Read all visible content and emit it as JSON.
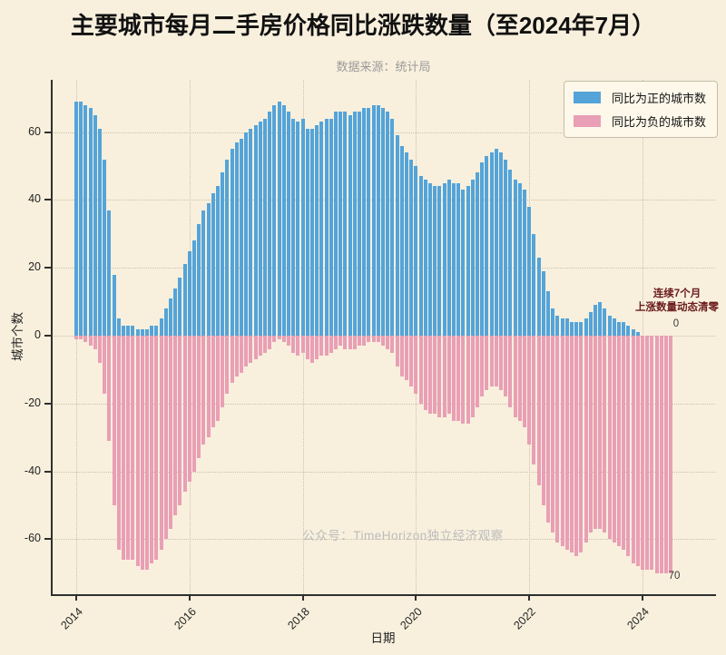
{
  "title": "主要城市每月二手房价格同比涨跌数量（至2024年7月）",
  "subtitle": "数据来源：统计局",
  "watermark": "公众号：TimeHorizon独立经济观察",
  "colors": {
    "positive": "#54a4d9",
    "negative": "#e99fb5",
    "background": "#f8f0dd",
    "grid": "#c9c0ad",
    "spine": "#2f2f2f",
    "annotation": "#6b1b1b"
  },
  "legend": [
    {
      "label": "同比为正的城市数",
      "color": "#54a4d9"
    },
    {
      "label": "同比为负的城市数",
      "color": "#e99fb5"
    }
  ],
  "axes": {
    "ylabel": "城市个数",
    "xlabel": "日期",
    "yticks": [
      60,
      40,
      20,
      0,
      -20,
      -40,
      -60
    ],
    "xticks": [
      "2014",
      "2016",
      "2018",
      "2020",
      "2022",
      "2024"
    ]
  },
  "annotation": {
    "line1": "连续7个月",
    "line2": "上涨数量动态清零",
    "value_top": "0",
    "value_bottom": "70"
  },
  "chart_data": {
    "type": "bar",
    "title": "主要城市每月二手房价格同比涨跌数量（至2024年7月）",
    "xlabel": "日期",
    "ylabel": "城市个数",
    "ylim": [
      -75,
      75
    ],
    "yticks": [
      -60,
      -40,
      -20,
      0,
      20,
      40,
      60
    ],
    "grid": true,
    "legend_position": "upper right",
    "x_start": "2014-01",
    "x_end": "2024-07",
    "categories": [
      "2014-01",
      "2014-02",
      "2014-03",
      "2014-04",
      "2014-05",
      "2014-06",
      "2014-07",
      "2014-08",
      "2014-09",
      "2014-10",
      "2014-11",
      "2014-12",
      "2015-01",
      "2015-02",
      "2015-03",
      "2015-04",
      "2015-05",
      "2015-06",
      "2015-07",
      "2015-08",
      "2015-09",
      "2015-10",
      "2015-11",
      "2015-12",
      "2016-01",
      "2016-02",
      "2016-03",
      "2016-04",
      "2016-05",
      "2016-06",
      "2016-07",
      "2016-08",
      "2016-09",
      "2016-10",
      "2016-11",
      "2016-12",
      "2017-01",
      "2017-02",
      "2017-03",
      "2017-04",
      "2017-05",
      "2017-06",
      "2017-07",
      "2017-08",
      "2017-09",
      "2017-10",
      "2017-11",
      "2017-12",
      "2018-01",
      "2018-02",
      "2018-03",
      "2018-04",
      "2018-05",
      "2018-06",
      "2018-07",
      "2018-08",
      "2018-09",
      "2018-10",
      "2018-11",
      "2018-12",
      "2019-01",
      "2019-02",
      "2019-03",
      "2019-04",
      "2019-05",
      "2019-06",
      "2019-07",
      "2019-08",
      "2019-09",
      "2019-10",
      "2019-11",
      "2019-12",
      "2020-01",
      "2020-02",
      "2020-03",
      "2020-04",
      "2020-05",
      "2020-06",
      "2020-07",
      "2020-08",
      "2020-09",
      "2020-10",
      "2020-11",
      "2020-12",
      "2021-01",
      "2021-02",
      "2021-03",
      "2021-04",
      "2021-05",
      "2021-06",
      "2021-07",
      "2021-08",
      "2021-09",
      "2021-10",
      "2021-11",
      "2021-12",
      "2022-01",
      "2022-02",
      "2022-03",
      "2022-04",
      "2022-05",
      "2022-06",
      "2022-07",
      "2022-08",
      "2022-09",
      "2022-10",
      "2022-11",
      "2022-12",
      "2023-01",
      "2023-02",
      "2023-03",
      "2023-04",
      "2023-05",
      "2023-06",
      "2023-07",
      "2023-08",
      "2023-09",
      "2023-10",
      "2023-11",
      "2023-12",
      "2024-01",
      "2024-02",
      "2024-03",
      "2024-04",
      "2024-05",
      "2024-06",
      "2024-07"
    ],
    "series": [
      {
        "name": "同比为正的城市数",
        "color": "#54a4d9",
        "values": [
          69,
          69,
          68,
          67,
          65,
          61,
          52,
          37,
          18,
          5,
          3,
          3,
          3,
          2,
          2,
          2,
          3,
          3,
          5,
          8,
          11,
          14,
          17,
          21,
          25,
          28,
          33,
          37,
          39,
          42,
          44,
          48,
          52,
          55,
          57,
          58,
          60,
          61,
          62,
          63,
          64,
          66,
          68,
          69,
          68,
          66,
          64,
          63,
          64,
          61,
          61,
          62,
          63,
          64,
          64,
          66,
          66,
          66,
          65,
          66,
          66,
          67,
          67,
          68,
          68,
          67,
          66,
          64,
          59,
          56,
          54,
          52,
          50,
          47,
          46,
          45,
          44,
          44,
          45,
          46,
          45,
          45,
          43,
          44,
          46,
          48,
          51,
          53,
          54,
          55,
          54,
          52,
          49,
          46,
          45,
          43,
          38,
          30,
          23,
          19,
          13,
          8,
          6,
          5,
          5,
          4,
          4,
          4,
          5,
          7,
          9,
          10,
          8,
          6,
          5,
          4,
          4,
          3,
          2,
          1,
          0,
          0,
          0,
          0,
          0,
          0,
          0
        ]
      },
      {
        "name": "同比为负的城市数",
        "color": "#e99fb5",
        "values": [
          -1,
          -1,
          -2,
          -3,
          -4,
          -8,
          -17,
          -31,
          -50,
          -63,
          -66,
          -66,
          -66,
          -68,
          -69,
          -69,
          -67,
          -66,
          -63,
          -60,
          -57,
          -53,
          -50,
          -46,
          -43,
          -40,
          -36,
          -32,
          -30,
          -27,
          -25,
          -21,
          -17,
          -14,
          -12,
          -11,
          -9,
          -8,
          -7,
          -6,
          -5,
          -4,
          -2,
          -1,
          -2,
          -3,
          -5,
          -6,
          -5,
          -7,
          -8,
          -7,
          -6,
          -6,
          -5,
          -4,
          -3,
          -4,
          -4,
          -4,
          -3,
          -3,
          -2,
          -2,
          -2,
          -3,
          -4,
          -5,
          -9,
          -12,
          -13,
          -15,
          -17,
          -20,
          -22,
          -23,
          -23,
          -24,
          -24,
          -23,
          -25,
          -25,
          -26,
          -26,
          -24,
          -21,
          -18,
          -16,
          -15,
          -15,
          -16,
          -18,
          -21,
          -24,
          -25,
          -27,
          -32,
          -38,
          -44,
          -50,
          -55,
          -58,
          -61,
          -62,
          -63,
          -64,
          -65,
          -64,
          -61,
          -58,
          -57,
          -57,
          -58,
          -60,
          -61,
          -62,
          -63,
          -65,
          -67,
          -68,
          -69,
          -69,
          -69,
          -70,
          -70,
          -70,
          -70
        ]
      }
    ],
    "annotations": [
      {
        "text": "连续7个月 上涨数量动态清零",
        "x": "2024-07",
        "y": 10
      },
      {
        "text": "0",
        "x": "2024-07",
        "y": 3
      },
      {
        "text": "70",
        "x": "2024-07",
        "y": -73
      }
    ]
  }
}
